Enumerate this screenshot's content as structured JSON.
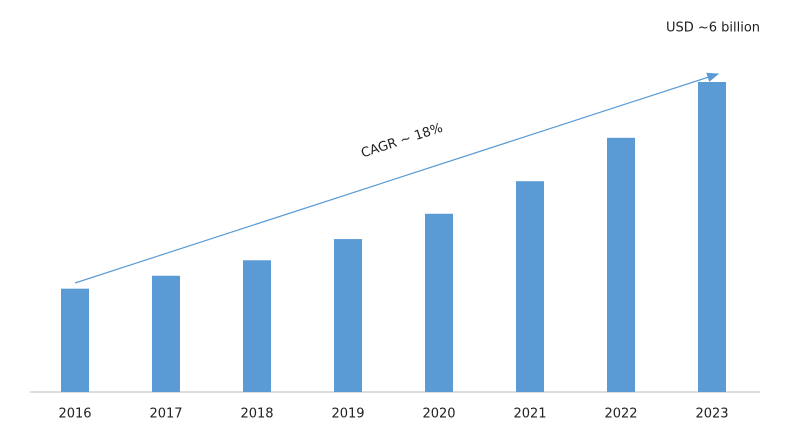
{
  "chart_data": {
    "type": "bar",
    "categories": [
      "2016",
      "2017",
      "2018",
      "2019",
      "2020",
      "2021",
      "2022",
      "2023"
    ],
    "values": [
      2.0,
      2.25,
      2.55,
      2.96,
      3.45,
      4.08,
      4.92,
      6
    ],
    "color": "#5b9bd5",
    "annotations": [
      "USD ~6 billion",
      "CAGR ~ 18%"
    ]
  }
}
